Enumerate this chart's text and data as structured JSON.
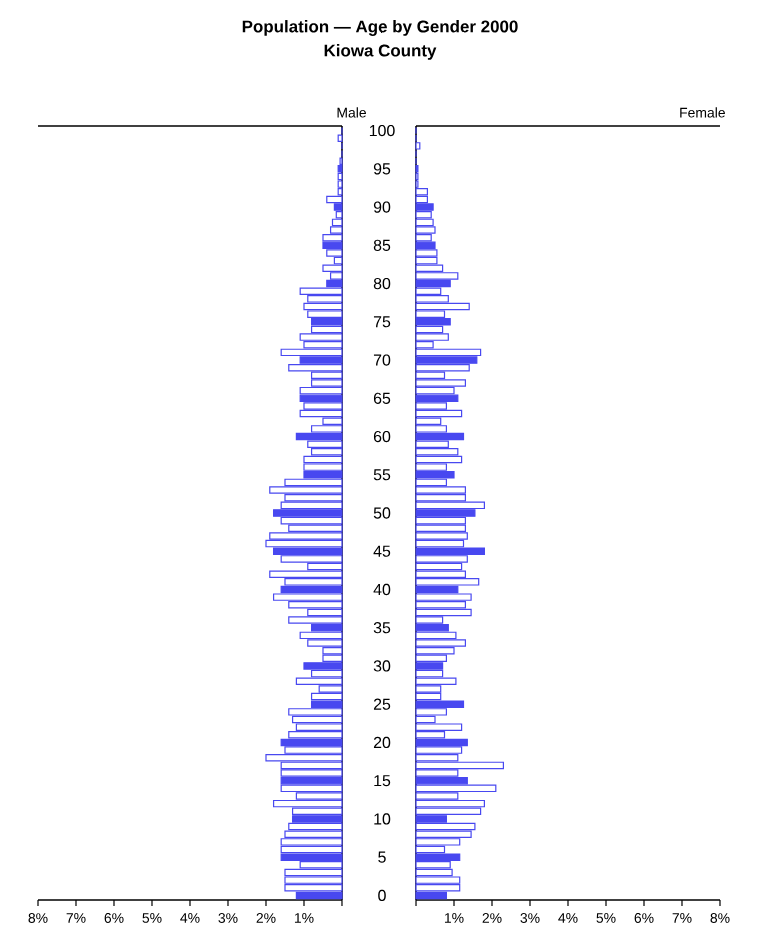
{
  "chart_data": [
    {
      "type": "bar",
      "orientation": "horizontal",
      "title": "Population — Age by Gender 2000",
      "subtitle": "Kiowa County",
      "annotations": [
        "Male"
      ],
      "tick_labels": "x",
      "color": "#4848f0",
      "categories": [
        "100",
        null,
        null,
        null,
        null,
        "95",
        null,
        null,
        null,
        null,
        "90",
        null,
        null,
        null,
        null,
        "85",
        null,
        null,
        null,
        null,
        "80",
        null,
        null,
        null,
        null,
        "75",
        null,
        null,
        null,
        null,
        "70",
        null,
        null,
        null,
        null,
        "65",
        null,
        null,
        null,
        null,
        "60",
        null,
        null,
        null,
        null,
        "55",
        null,
        null,
        null,
        null,
        "50",
        null,
        null,
        null,
        null,
        "45",
        null,
        null,
        null,
        null,
        "40",
        null,
        null,
        null,
        null,
        "35",
        null,
        null,
        null,
        null,
        "30",
        null,
        null,
        null,
        null,
        "25",
        null,
        null,
        null,
        null,
        "20",
        null,
        null,
        null,
        null,
        "15",
        null,
        null,
        null,
        null,
        "10",
        null,
        null,
        null,
        null,
        "5",
        null,
        null,
        null,
        null,
        "0"
      ],
      "values": [
        0,
        0.1,
        0,
        0,
        0.05,
        0.1,
        0.1,
        0.1,
        0.1,
        0.4,
        0.2,
        0.15,
        0.25,
        0.3,
        0.5,
        0.5,
        0.4,
        0.2,
        0.5,
        0.3,
        0.4,
        1.1,
        0.9,
        1.0,
        0.9,
        0.8,
        0.8,
        1.1,
        1.0,
        1.6,
        1.1,
        1.4,
        0.8,
        0.8,
        1.1,
        1.1,
        1.0,
        1.1,
        0.5,
        0.8,
        1.2,
        0.9,
        0.8,
        1.0,
        1.0,
        1.0,
        1.5,
        1.9,
        1.5,
        1.6,
        1.8,
        1.6,
        1.4,
        1.9,
        2.0,
        1.8,
        1.6,
        0.9,
        1.9,
        1.5,
        1.6,
        1.8,
        1.4,
        0.9,
        1.4,
        0.8,
        1.1,
        0.9,
        0.5,
        0.5,
        1.0,
        0.8,
        1.2,
        0.6,
        0.8,
        0.8,
        1.4,
        1.3,
        1.2,
        1.4,
        1.6,
        1.5,
        2.0,
        1.6,
        1.6,
        1.6,
        1.6,
        1.2,
        1.8,
        1.3,
        1.3,
        1.4,
        1.5,
        1.6,
        1.6,
        1.6,
        1.1,
        1.5,
        1.5,
        1.5,
        1.2
      ],
      "colors": [
        "#4848f0",
        "#ffffff",
        "#ffffff",
        "#ffffff",
        "#ffffff",
        "#4848f0",
        "#ffffff",
        "#ffffff",
        "#ffffff",
        "#ffffff",
        "#4848f0",
        "#ffffff",
        "#ffffff",
        "#ffffff",
        "#ffffff",
        "#4848f0",
        "#ffffff",
        "#ffffff",
        "#ffffff",
        "#ffffff",
        "#4848f0",
        "#ffffff",
        "#ffffff",
        "#ffffff",
        "#ffffff",
        "#4848f0",
        "#ffffff",
        "#ffffff",
        "#ffffff",
        "#ffffff",
        "#4848f0",
        "#ffffff",
        "#ffffff",
        "#ffffff",
        "#ffffff",
        "#4848f0",
        "#ffffff",
        "#ffffff",
        "#ffffff",
        "#ffffff",
        "#4848f0",
        "#ffffff",
        "#ffffff",
        "#ffffff",
        "#ffffff",
        "#4848f0",
        "#ffffff",
        "#ffffff",
        "#ffffff",
        "#ffffff",
        "#4848f0",
        "#ffffff",
        "#ffffff",
        "#ffffff",
        "#ffffff",
        "#4848f0",
        "#ffffff",
        "#ffffff",
        "#ffffff",
        "#ffffff",
        "#4848f0",
        "#ffffff",
        "#ffffff",
        "#ffffff",
        "#ffffff",
        "#4848f0",
        "#ffffff",
        "#ffffff",
        "#ffffff",
        "#ffffff",
        "#4848f0",
        "#ffffff",
        "#ffffff",
        "#ffffff",
        "#ffffff",
        "#4848f0",
        "#ffffff",
        "#ffffff",
        "#ffffff",
        "#ffffff",
        "#4848f0",
        "#ffffff",
        "#ffffff",
        "#ffffff",
        "#ffffff",
        "#4848f0",
        "#ffffff",
        "#ffffff",
        "#ffffff",
        "#ffffff",
        "#4848f0",
        "#ffffff",
        "#ffffff",
        "#ffffff",
        "#ffffff",
        "#4848f0",
        "#ffffff",
        "#ffffff",
        "#ffffff",
        "#ffffff",
        "#4848f0"
      ],
      "xlim": [
        8,
        0
      ],
      "xticks": [
        {
          "value": 8,
          "label": "8%"
        },
        {
          "value": 7,
          "label": "7%"
        },
        {
          "value": 6,
          "label": "6%"
        },
        {
          "value": 5,
          "label": "5%"
        },
        {
          "value": 4,
          "label": "4%"
        },
        {
          "value": 3,
          "label": "3%"
        },
        {
          "value": 2,
          "label": "2%"
        },
        {
          "value": 1,
          "label": "1%"
        },
        {
          "value": 0,
          "label": null
        }
      ]
    },
    {
      "type": "bar",
      "orientation": "horizontal",
      "annotations": [
        "Female"
      ],
      "color": "#4848f0",
      "categories": [
        "100",
        null,
        null,
        null,
        null,
        "95",
        null,
        null,
        null,
        null,
        "90",
        null,
        null,
        null,
        null,
        "85",
        null,
        null,
        null,
        null,
        "80",
        null,
        null,
        null,
        null,
        "75",
        null,
        null,
        null,
        null,
        "70",
        null,
        null,
        null,
        null,
        "65",
        null,
        null,
        null,
        null,
        "60",
        null,
        null,
        null,
        null,
        "55",
        null,
        null,
        null,
        null,
        "50",
        null,
        null,
        null,
        null,
        "45",
        null,
        null,
        null,
        null,
        "40",
        null,
        null,
        null,
        null,
        "35",
        null,
        null,
        null,
        null,
        "30",
        null,
        null,
        null,
        null,
        "25",
        null,
        null,
        null,
        null,
        "20",
        null,
        null,
        null,
        null,
        "15",
        null,
        null,
        null,
        null,
        "10",
        null,
        null,
        null,
        null,
        "5",
        null,
        null,
        null,
        null,
        "0"
      ],
      "values": [
        0,
        0,
        0.1,
        0,
        0,
        0.05,
        0.05,
        0.05,
        0.3,
        0.3,
        0.45,
        0.4,
        0.45,
        0.5,
        0.4,
        0.5,
        0.55,
        0.55,
        0.7,
        1.1,
        0.9,
        0.65,
        0.85,
        1.4,
        0.75,
        0.9,
        0.7,
        0.85,
        0.45,
        1.7,
        1.6,
        1.4,
        0.75,
        1.3,
        1.0,
        1.1,
        0.8,
        1.2,
        0.65,
        0.8,
        1.25,
        0.85,
        1.1,
        1.2,
        0.8,
        1.0,
        0.8,
        1.3,
        1.3,
        1.8,
        1.55,
        1.3,
        1.3,
        1.35,
        1.25,
        1.8,
        1.35,
        1.2,
        1.3,
        1.65,
        1.1,
        1.45,
        1.3,
        1.45,
        0.7,
        0.85,
        1.05,
        1.3,
        1.0,
        0.8,
        0.7,
        0.7,
        1.05,
        0.65,
        0.65,
        1.25,
        0.8,
        0.5,
        1.2,
        0.75,
        1.35,
        1.2,
        1.1,
        2.3,
        1.1,
        1.35,
        2.1,
        1.1,
        1.8,
        1.7,
        0.8,
        1.55,
        1.45,
        1.15,
        0.75,
        1.15,
        0.9,
        0.95,
        1.15,
        1.15,
        0.8
      ],
      "colors": [
        "#4848f0",
        "#ffffff",
        "#ffffff",
        "#ffffff",
        "#ffffff",
        "#4848f0",
        "#ffffff",
        "#ffffff",
        "#ffffff",
        "#ffffff",
        "#4848f0",
        "#ffffff",
        "#ffffff",
        "#ffffff",
        "#ffffff",
        "#4848f0",
        "#ffffff",
        "#ffffff",
        "#ffffff",
        "#ffffff",
        "#4848f0",
        "#ffffff",
        "#ffffff",
        "#ffffff",
        "#ffffff",
        "#4848f0",
        "#ffffff",
        "#ffffff",
        "#ffffff",
        "#ffffff",
        "#4848f0",
        "#ffffff",
        "#ffffff",
        "#ffffff",
        "#ffffff",
        "#4848f0",
        "#ffffff",
        "#ffffff",
        "#ffffff",
        "#ffffff",
        "#4848f0",
        "#ffffff",
        "#ffffff",
        "#ffffff",
        "#ffffff",
        "#4848f0",
        "#ffffff",
        "#ffffff",
        "#ffffff",
        "#ffffff",
        "#4848f0",
        "#ffffff",
        "#ffffff",
        "#ffffff",
        "#ffffff",
        "#4848f0",
        "#ffffff",
        "#ffffff",
        "#ffffff",
        "#ffffff",
        "#4848f0",
        "#ffffff",
        "#ffffff",
        "#ffffff",
        "#ffffff",
        "#4848f0",
        "#ffffff",
        "#ffffff",
        "#ffffff",
        "#ffffff",
        "#4848f0",
        "#ffffff",
        "#ffffff",
        "#ffffff",
        "#ffffff",
        "#4848f0",
        "#ffffff",
        "#ffffff",
        "#ffffff",
        "#ffffff",
        "#4848f0",
        "#ffffff",
        "#ffffff",
        "#ffffff",
        "#ffffff",
        "#4848f0",
        "#ffffff",
        "#ffffff",
        "#ffffff",
        "#ffffff",
        "#4848f0",
        "#ffffff",
        "#ffffff",
        "#ffffff",
        "#ffffff",
        "#4848f0",
        "#ffffff",
        "#ffffff",
        "#ffffff",
        "#ffffff",
        "#4848f0"
      ],
      "xlim": [
        0,
        8
      ],
      "xticks": [
        {
          "value": 0,
          "label": null
        },
        {
          "value": 1,
          "label": "1%"
        },
        {
          "value": 2,
          "label": "2%"
        },
        {
          "value": 3,
          "label": "3%"
        },
        {
          "value": 4,
          "label": "4%"
        },
        {
          "value": 5,
          "label": "5%"
        },
        {
          "value": 6,
          "label": "6%"
        },
        {
          "value": 7,
          "label": "7%"
        },
        {
          "value": 8,
          "label": "8%"
        }
      ]
    }
  ]
}
